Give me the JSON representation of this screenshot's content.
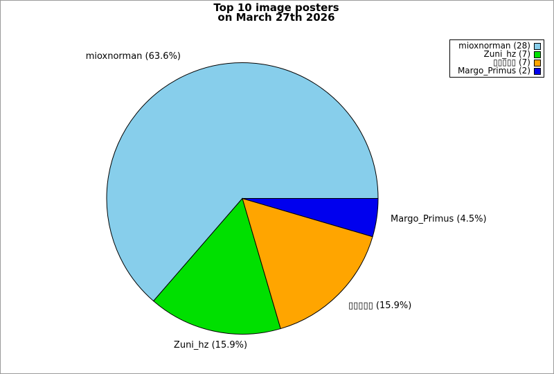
{
  "title": {
    "line1": "Top 10 image posters",
    "line2": "on March 27th 2026"
  },
  "chart_data": {
    "type": "pie",
    "title": "Top 10 image posters on March 27th 2026",
    "labels": [
      "mioxnorman",
      "Zuni_hz",
      "▯▯▯▯▯",
      "Margo_Primus"
    ],
    "counts": [
      28,
      7,
      7,
      2
    ],
    "percents": [
      "63.6%",
      "15.9%",
      "15.9%",
      "4.5%"
    ],
    "colors": [
      "#87CEEB",
      "#00E000",
      "#FFA500",
      "#0000EE"
    ],
    "start_angle_deg": 0,
    "counterclockwise": true,
    "edge_color": "#000000",
    "legend_position": "upper right"
  },
  "slice_labels": {
    "mioxnorman": "mioxnorman (63.6%)",
    "zuni": "Zuni_hz (15.9%)",
    "tofu": "▯▯▯▯▯ (15.9%)",
    "margo": "Margo_Primus (4.5%)"
  },
  "legend": {
    "items": [
      {
        "label": "mioxnorman (28)",
        "color": "#87CEEB"
      },
      {
        "label": "Zuni_hz (7)",
        "color": "#00E000"
      },
      {
        "label": "▯▯▯▯▯ (7)",
        "color": "#FFA500"
      },
      {
        "label": "Margo_Primus (2)",
        "color": "#0000EE"
      }
    ]
  }
}
